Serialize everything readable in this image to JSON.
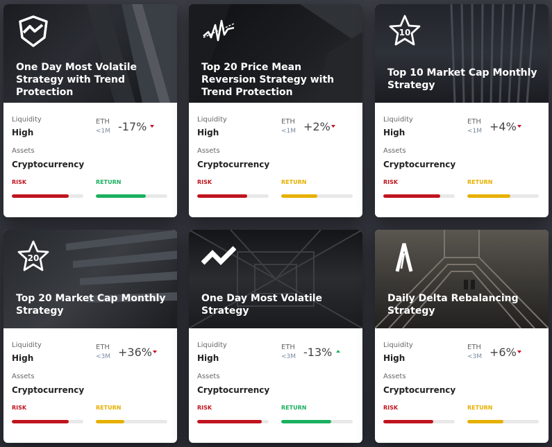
{
  "labels": {
    "liquidity": "Liquidity",
    "assets": "Assets",
    "currency": "ETH",
    "risk": "RISK",
    "return": "RETURN"
  },
  "colors": {
    "risk": "#c0141f",
    "return_yellow": "#e6b000",
    "return_green": "#1bb060",
    "trend_down": "#c0141f",
    "trend_up": "#1bb060"
  },
  "cards": [
    {
      "title": "One Day Most Volatile Strategy with Trend Protection",
      "icon": "shield-zigzag-icon",
      "liquidity": "High",
      "assets": "Cryptocurrency",
      "aum": "<1M",
      "change": "-17%",
      "trend": "down",
      "risk_level": 0.8,
      "return_level": 0.7,
      "return_color": "green"
    },
    {
      "title": "Top 20 Price Mean Reversion Strategy with Trend Protection",
      "icon": "waveform-icon",
      "liquidity": "High",
      "assets": "Cryptocurrency",
      "aum": "<1M",
      "change": "+2%",
      "trend": "down",
      "risk_level": 0.7,
      "return_level": 0.5,
      "return_color": "yellow"
    },
    {
      "title": "Top 10 Market Cap Monthly Strategy",
      "icon": "star-10-icon",
      "icon_text": "10",
      "liquidity": "High",
      "assets": "Cryptocurrency",
      "aum": "<1M",
      "change": "+4%",
      "trend": "down",
      "risk_level": 0.8,
      "return_level": 0.6,
      "return_color": "yellow"
    },
    {
      "title": "Top 20 Market Cap Monthly Strategy",
      "icon": "star-20-icon",
      "icon_text": "20",
      "liquidity": "High",
      "assets": "Cryptocurrency",
      "aum": "<3M",
      "change": "+36%",
      "trend": "down",
      "risk_level": 0.8,
      "return_level": 0.4,
      "return_color": "yellow"
    },
    {
      "title": "One Day Most Volatile Strategy",
      "icon": "zigzag-icon",
      "liquidity": "High",
      "assets": "Cryptocurrency",
      "aum": "<3M",
      "change": "-13%",
      "trend": "up",
      "risk_level": 0.9,
      "return_level": 0.7,
      "return_color": "green"
    },
    {
      "title": "Daily Delta Rebalancing Strategy",
      "icon": "delta-icon",
      "liquidity": "High",
      "assets": "Cryptocurrency",
      "aum": "<3M",
      "change": "+6%",
      "trend": "down",
      "risk_level": 0.7,
      "return_level": 0.5,
      "return_color": "yellow"
    }
  ]
}
